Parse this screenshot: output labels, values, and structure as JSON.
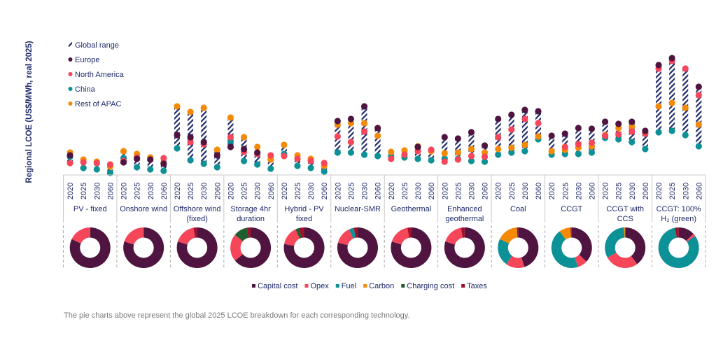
{
  "chart_data": {
    "type": "scatter",
    "ylabel": "Regional LCOE (US$/MWh, real 2025)",
    "y_scale_note_unlabeled": true,
    "ylim": [
      0,
      175
    ],
    "grid": false,
    "legend_placement": "top-left",
    "legend": [
      {
        "key": "range",
        "label": "Global range"
      },
      {
        "key": "europe",
        "label": "Europe",
        "color": "#4f1540"
      },
      {
        "key": "na",
        "label": "North America",
        "color": "#f6465a"
      },
      {
        "key": "china",
        "label": "China",
        "color": "#0b9196"
      },
      {
        "key": "apac",
        "label": "Rest of APAC",
        "color": "#f58a07"
      }
    ],
    "range_color": "#1f2a6b",
    "years": [
      "2020",
      "2025",
      "2030",
      "2060"
    ],
    "groups": [
      {
        "name": [
          "PV - fixed"
        ],
        "points": [
          {
            "europe": 28,
            "na": 17,
            "china": 26,
            "apac": 32
          },
          {
            "europe": null,
            "na": 18,
            "china": 10,
            "apac": 22
          },
          {
            "europe": null,
            "na": 17,
            "china": 8,
            "apac": 19
          },
          {
            "europe": null,
            "na": 15,
            "china": 3,
            "apac": 12
          }
        ]
      },
      {
        "name": [
          "Onshore wind"
        ],
        "points": [
          {
            "europe": 18,
            "na": 20,
            "china": 24,
            "apac": 34
          },
          {
            "europe": 23,
            "na": 25,
            "china": 11,
            "apac": 30
          },
          {
            "europe": 22,
            "na": 22,
            "china": 8,
            "apac": 25
          },
          {
            "europe": 16,
            "na": 24,
            "china": 6,
            "apac": 17
          }
        ]
      },
      {
        "name": [
          "Offshore wind",
          "(fixed)"
        ],
        "points": [
          {
            "europe": 57,
            "na": 57,
            "china": 38,
            "apac": 98
          },
          {
            "europe": 54,
            "na": 47,
            "china": 21,
            "apac": 90
          },
          {
            "europe": 47,
            "na": 44,
            "china": 16,
            "apac": 96
          },
          {
            "europe": 28,
            "na": null,
            "china": 11,
            "apac": 36
          }
        ]
      },
      {
        "name": [
          "Storage 4hr",
          "duration"
        ],
        "points": [
          {
            "europe": 40,
            "na": 54,
            "china": 48,
            "apac": 82
          },
          {
            "europe": 37,
            "na": 33,
            "china": 20,
            "apac": 54
          },
          {
            "europe": 32,
            "na": 30,
            "china": 15,
            "apac": 40
          },
          {
            "europe": null,
            "na": 28,
            "china": 9,
            "apac": 22
          }
        ]
      },
      {
        "name": [
          "Hybrid - PV",
          "fixed"
        ],
        "points": [
          {
            "europe": null,
            "na": 27,
            "china": 30,
            "apac": 43
          },
          {
            "europe": null,
            "na": 23,
            "china": 13,
            "apac": 28
          },
          {
            "europe": null,
            "na": 20,
            "china": 10,
            "apac": 23
          },
          {
            "europe": null,
            "na": 17,
            "china": 5,
            "apac": 13
          }
        ]
      },
      {
        "name": [
          "Nuclear-SMR"
        ],
        "points": [
          {
            "europe": 77,
            "na": 55,
            "china": 32,
            "apac": 72
          },
          {
            "europe": 80,
            "na": 47,
            "china": 32,
            "apac": 74
          },
          {
            "europe": 98,
            "na": 62,
            "china": 29,
            "apac": 74
          },
          {
            "europe": 67,
            "na": null,
            "china": 27,
            "apac": 56
          }
        ]
      },
      {
        "name": [
          "Geothermal"
        ],
        "points": [
          {
            "europe": null,
            "na": 23,
            "china": 27,
            "apac": 33
          },
          {
            "europe": null,
            "na": 29,
            "china": 25,
            "apac": 35
          },
          {
            "europe": 40,
            "na": 34,
            "china": 23,
            "apac": 41
          },
          {
            "europe": null,
            "na": 36,
            "china": 21,
            "apac": 34
          }
        ]
      },
      {
        "name": [
          "Enhanced",
          "geothermal"
        ],
        "points": [
          {
            "europe": 54,
            "na": 19,
            "china": 23,
            "apac": 31
          },
          {
            "europe": 52,
            "na": 22,
            "china": 23,
            "apac": 32
          },
          {
            "europe": 61,
            "na": 27,
            "china": 20,
            "apac": 37
          },
          {
            "europe": 42,
            "na": 26,
            "china": 19,
            "apac": 32
          }
        ]
      },
      {
        "name": [
          "Coal"
        ],
        "points": [
          {
            "europe": 80,
            "na": 54,
            "china": 29,
            "apac": 37
          },
          {
            "europe": 86,
            "na": 65,
            "china": 32,
            "apac": 39
          },
          {
            "europe": 93,
            "na": 80,
            "china": 34,
            "apac": 43
          },
          {
            "europe": 91,
            "na": 74,
            "china": 51,
            "apac": 55
          }
        ]
      },
      {
        "name": [
          "CCGT"
        ],
        "points": [
          {
            "europe": 56,
            "na": null,
            "china": 29,
            "apac": 34
          },
          {
            "europe": 59,
            "na": 40,
            "china": 30,
            "apac": 36
          },
          {
            "europe": 67,
            "na": 44,
            "china": 30,
            "apac": 39
          },
          {
            "europe": 66,
            "na": 46,
            "china": 32,
            "apac": 41
          }
        ]
      },
      {
        "name": [
          "CCGT with",
          "CCS"
        ],
        "points": [
          {
            "europe": 76,
            "na": 56,
            "china": 53,
            "apac": 57
          },
          {
            "europe": 73,
            "na": 58,
            "china": 51,
            "apac": 67
          },
          {
            "europe": 76,
            "na": 62,
            "china": 47,
            "apac": 69
          },
          {
            "europe": 63,
            "na": 59,
            "china": 37,
            "apac": 60
          }
        ]
      },
      {
        "name": [
          "CCGT: 100%",
          "H₂ (green)"
        ],
        "points": [
          {
            "europe": 157,
            "na": 152,
            "china": 61,
            "apac": 98
          },
          {
            "europe": 167,
            "na": 163,
            "china": 63,
            "apac": 103
          },
          {
            "europe": null,
            "na": 152,
            "china": 57,
            "apac": 96
          },
          {
            "europe": 126,
            "na": 114,
            "china": 41,
            "apac": 72
          }
        ]
      }
    ],
    "pie": {
      "type": "pie",
      "components": [
        {
          "key": "capital",
          "label": "Capital cost",
          "color": "#4f1540"
        },
        {
          "key": "opex",
          "label": "Opex",
          "color": "#f6465a"
        },
        {
          "key": "fuel",
          "label": "Fuel",
          "color": "#0b9196"
        },
        {
          "key": "carbon",
          "label": "Carbon",
          "color": "#f58a07"
        },
        {
          "key": "charging",
          "label": "Charging cost",
          "color": "#1e5d2e"
        },
        {
          "key": "taxes",
          "label": "Taxes",
          "color": "#a0102a"
        }
      ],
      "shares_percent": [
        {
          "capital": 82,
          "opex": 18
        },
        {
          "capital": 80,
          "opex": 20
        },
        {
          "capital": 80,
          "opex": 17,
          "taxes": 3
        },
        {
          "capital": 64,
          "opex": 22,
          "charging": 11,
          "taxes": 3
        },
        {
          "capital": 78,
          "opex": 15,
          "charging": 3,
          "taxes": 4
        },
        {
          "capital": 79,
          "opex": 14,
          "fuel": 4,
          "taxes": 3
        },
        {
          "capital": 80,
          "opex": 17,
          "taxes": 3
        },
        {
          "capital": 80,
          "opex": 17,
          "taxes": 3
        },
        {
          "capital": 45,
          "opex": 15,
          "fuel": 22,
          "carbon": 17,
          "taxes": 1
        },
        {
          "capital": 37,
          "opex": 8,
          "fuel": 45,
          "carbon": 9,
          "taxes": 1
        },
        {
          "capital": 40,
          "opex": 27,
          "fuel": 32,
          "carbon": 1
        },
        {
          "capital": 13,
          "opex": 2,
          "fuel": 82,
          "taxes": 3
        }
      ]
    }
  },
  "footnote": "The pie charts above represent the global 2025 LCOE breakdown for each corresponding technology."
}
